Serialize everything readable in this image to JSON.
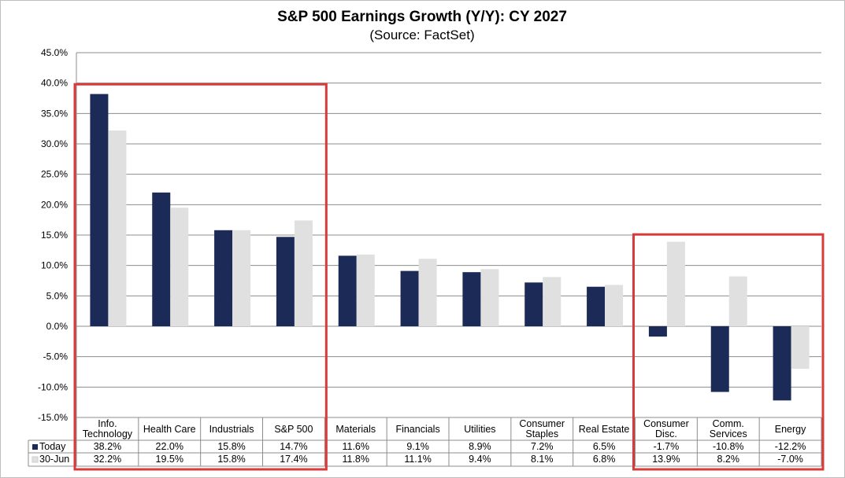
{
  "chart_data": {
    "type": "bar",
    "title": "S&P 500 Earnings Growth (Y/Y): CY 2027",
    "subtitle": "(Source: FactSet)",
    "categories": [
      [
        "Info.",
        "Technology"
      ],
      [
        "Health Care"
      ],
      [
        "Industrials"
      ],
      [
        "S&P 500"
      ],
      [
        "Materials"
      ],
      [
        "Financials"
      ],
      [
        "Utilities"
      ],
      [
        "Consumer",
        "Staples"
      ],
      [
        "Real Estate"
      ],
      [
        "Consumer",
        "Disc."
      ],
      [
        "Comm.",
        "Services"
      ],
      [
        "Energy"
      ]
    ],
    "series": [
      {
        "name": "Today",
        "color": "#1b2a56",
        "values": [
          38.2,
          22.0,
          15.8,
          14.7,
          11.6,
          9.1,
          8.9,
          7.2,
          6.5,
          -1.7,
          -10.8,
          -12.2
        ],
        "labels": [
          "38.2%",
          "22.0%",
          "15.8%",
          "14.7%",
          "11.6%",
          "9.1%",
          "8.9%",
          "7.2%",
          "6.5%",
          "-1.7%",
          "-10.8%",
          "-12.2%"
        ]
      },
      {
        "name": "30-Jun",
        "color": "#e0e0e0",
        "values": [
          32.2,
          19.5,
          15.8,
          17.4,
          11.8,
          11.1,
          9.4,
          8.1,
          6.8,
          13.9,
          8.2,
          -7.0
        ],
        "labels": [
          "32.2%",
          "19.5%",
          "15.8%",
          "17.4%",
          "11.8%",
          "11.1%",
          "9.4%",
          "8.1%",
          "6.8%",
          "13.9%",
          "8.2%",
          "-7.0%"
        ]
      }
    ],
    "yticks": [
      "45.0%",
      "40.0%",
      "35.0%",
      "30.0%",
      "25.0%",
      "20.0%",
      "15.0%",
      "10.0%",
      "5.0%",
      "0.0%",
      "-5.0%",
      "-10.0%",
      "-15.0%"
    ],
    "ylim": [
      -15,
      45
    ],
    "grid": true,
    "legend": "data-table",
    "highlight_color": "#d93a3a",
    "highlight_groups": [
      [
        0,
        3
      ],
      [
        9,
        11
      ]
    ]
  }
}
